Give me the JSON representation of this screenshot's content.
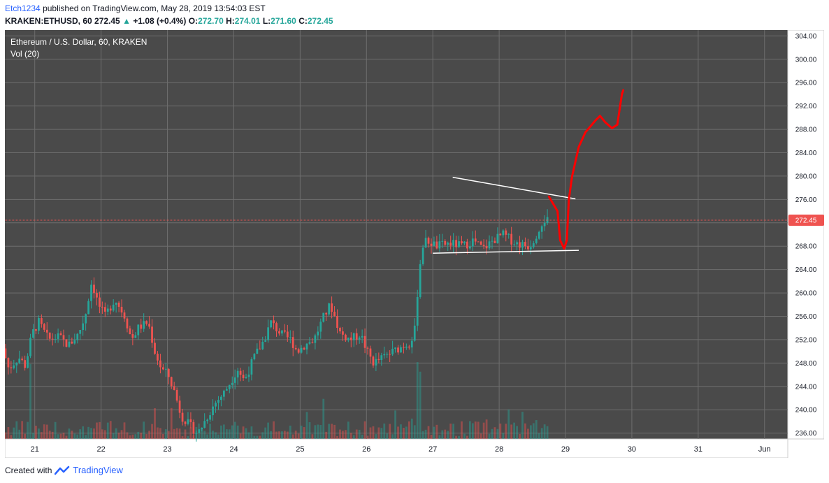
{
  "header": {
    "author": "Etch1234",
    "published": "published on TradingView.com, May 28, 2019 13:54:03 EST",
    "symbol": "KRAKEN:ETHUSD, 60",
    "last": "272.45",
    "change_arrow": "▲",
    "change": "+1.08 (+0.4%)",
    "o_label": "O:",
    "o": "272.70",
    "h_label": "H:",
    "h": "274.01",
    "l_label": "L:",
    "l": "271.60",
    "c_label": "C:",
    "c": "272.45"
  },
  "legend": {
    "title": "Ethereum / U.S. Dollar, 60, KRAKEN",
    "volume": "Vol (20)"
  },
  "footer": {
    "created_with": "Created with",
    "brand": "TradingView"
  },
  "colors": {
    "background": "#4a4a4a",
    "grid": "#6e6e6e",
    "up": "#26a69a",
    "down": "#ef5350",
    "price_line": "#ef5350",
    "drawing_red": "#ff0000",
    "trendline": "#ffffff"
  },
  "chart_data": {
    "type": "candlestick",
    "timeframe": "60",
    "y_range": [
      235,
      305
    ],
    "y_ticks": [
      "236.00",
      "240.00",
      "244.00",
      "248.00",
      "252.00",
      "256.00",
      "260.00",
      "264.00",
      "268.00",
      "272.00",
      "276.00",
      "280.00",
      "284.00",
      "288.00",
      "292.00",
      "296.00",
      "300.00",
      "304.00"
    ],
    "x_range": [
      20.55,
      32.35
    ],
    "x_ticks": [
      {
        "label": "21",
        "day": 21
      },
      {
        "label": "22",
        "day": 22
      },
      {
        "label": "23",
        "day": 23
      },
      {
        "label": "24",
        "day": 24
      },
      {
        "label": "25",
        "day": 25
      },
      {
        "label": "26",
        "day": 26
      },
      {
        "label": "27",
        "day": 27
      },
      {
        "label": "28",
        "day": 28
      },
      {
        "label": "29",
        "day": 29
      },
      {
        "label": "30",
        "day": 30
      },
      {
        "label": "31",
        "day": 31
      },
      {
        "label": "Jun",
        "day": 32
      }
    ],
    "last_price": 272.45,
    "last_price_label": "272.45",
    "price_path": [
      [
        20.56,
        250.5
      ],
      [
        20.65,
        247
      ],
      [
        20.8,
        249
      ],
      [
        20.9,
        247.5
      ],
      [
        21.0,
        253
      ],
      [
        21.1,
        255
      ],
      [
        21.25,
        252
      ],
      [
        21.4,
        252.5
      ],
      [
        21.55,
        251
      ],
      [
        21.7,
        253
      ],
      [
        21.8,
        256
      ],
      [
        21.9,
        262
      ],
      [
        22.0,
        258
      ],
      [
        22.1,
        256
      ],
      [
        22.25,
        259
      ],
      [
        22.4,
        256
      ],
      [
        22.5,
        252
      ],
      [
        22.6,
        254
      ],
      [
        22.75,
        255
      ],
      [
        22.85,
        250
      ],
      [
        22.95,
        247
      ],
      [
        23.05,
        246
      ],
      [
        23.15,
        243
      ],
      [
        23.25,
        239
      ],
      [
        23.4,
        237
      ],
      [
        23.5,
        236
      ],
      [
        23.6,
        238
      ],
      [
        23.75,
        241
      ],
      [
        23.9,
        243
      ],
      [
        24.0,
        245
      ],
      [
        24.1,
        247
      ],
      [
        24.2,
        245
      ],
      [
        24.35,
        249
      ],
      [
        24.5,
        252
      ],
      [
        24.6,
        255
      ],
      [
        24.75,
        253
      ],
      [
        24.9,
        252
      ],
      [
        25.0,
        250
      ],
      [
        25.1,
        251
      ],
      [
        25.25,
        252
      ],
      [
        25.4,
        256
      ],
      [
        25.5,
        258
      ],
      [
        25.65,
        253
      ],
      [
        25.8,
        252
      ],
      [
        25.95,
        253
      ],
      [
        26.05,
        250
      ],
      [
        26.15,
        248
      ],
      [
        26.3,
        249
      ],
      [
        26.45,
        250
      ],
      [
        26.6,
        251
      ],
      [
        26.7,
        251.5
      ],
      [
        26.78,
        254
      ],
      [
        26.82,
        262
      ],
      [
        26.88,
        268
      ],
      [
        26.95,
        269
      ],
      [
        27.1,
        268
      ],
      [
        27.3,
        268.5
      ],
      [
        27.5,
        268
      ],
      [
        27.65,
        269
      ],
      [
        27.8,
        267.5
      ],
      [
        27.95,
        269
      ],
      [
        28.1,
        270
      ],
      [
        28.3,
        268.5
      ],
      [
        28.5,
        268
      ],
      [
        28.6,
        270
      ],
      [
        28.7,
        272.5
      ],
      [
        28.73,
        272.45
      ]
    ],
    "volume_range": [
      0,
      1
    ],
    "annotations": {
      "upper_trendline": [
        [
          27.3,
          279.8
        ],
        [
          29.15,
          276.1
        ]
      ],
      "lower_trendline": [
        [
          27.0,
          266.8
        ],
        [
          29.2,
          267.3
        ]
      ],
      "projection": [
        [
          28.75,
          276.5
        ],
        [
          28.88,
          274
        ],
        [
          28.92,
          269
        ],
        [
          28.98,
          267.6
        ],
        [
          29.02,
          269
        ],
        [
          29.05,
          276
        ],
        [
          29.1,
          280
        ],
        [
          29.2,
          285
        ],
        [
          29.3,
          287.5
        ],
        [
          29.45,
          289.5
        ],
        [
          29.52,
          290.3
        ],
        [
          29.6,
          289.2
        ],
        [
          29.7,
          288.2
        ],
        [
          29.78,
          288.8
        ],
        [
          29.85,
          294
        ],
        [
          29.87,
          294.7
        ]
      ]
    }
  }
}
